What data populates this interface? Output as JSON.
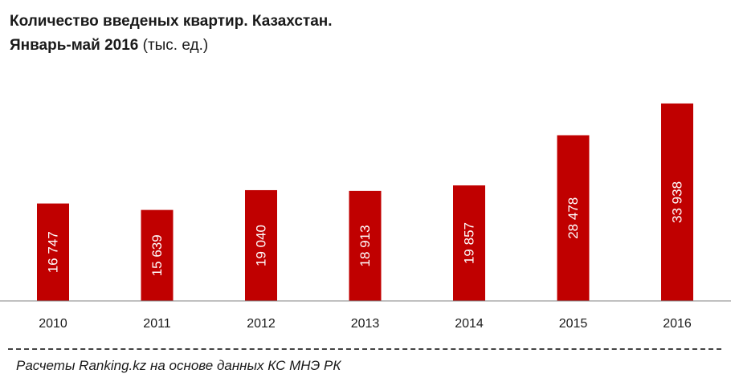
{
  "chart_data": {
    "type": "bar",
    "title_line1": "Количество  введеных квартир.  Казахстан.",
    "title_line2_main": "Январь-май  2016",
    "title_unit": "(тыс. ед.)",
    "categories": [
      "2010",
      "2011",
      "2012",
      "2013",
      "2014",
      "2015",
      "2016"
    ],
    "values": [
      16747,
      15639,
      19040,
      18913,
      19857,
      28478,
      33938
    ],
    "value_labels": [
      "16 747",
      "15 639",
      "19 040",
      "18 913",
      "19 857",
      "28 478",
      "33 938"
    ],
    "ylim": [
      0,
      36000
    ],
    "grid": false,
    "legend": "none",
    "colors": {
      "bar": "#c00000",
      "bar_label": "#ffffff"
    }
  },
  "source": "Расчеты Ranking.kz на основе данных  КС МНЭ РК"
}
